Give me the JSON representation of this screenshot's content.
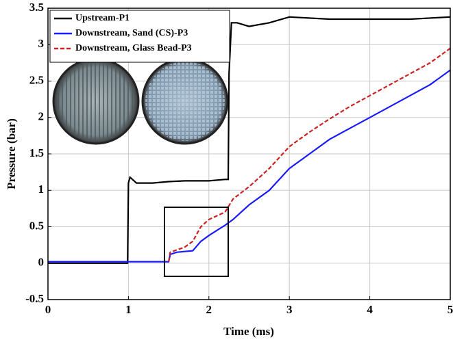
{
  "chart_data": {
    "type": "line",
    "xlabel": "Time (ms)",
    "ylabel": "Pressure (bar)",
    "xlim": [
      0,
      5
    ],
    "xticks": [
      0,
      1,
      2,
      3,
      4,
      5
    ],
    "ylim": [
      -0.5,
      3.5
    ],
    "yticks": [
      -0.5,
      0,
      0.5,
      1,
      1.5,
      2,
      2.5,
      3,
      3.5
    ],
    "grid": true,
    "legend": "upper left",
    "series": [
      {
        "name": "Upstream-P1",
        "color": "#000000",
        "dash": "solid",
        "x": [
          0,
          0.5,
          0.99,
          1.0,
          1.02,
          1.1,
          1.3,
          1.5,
          1.7,
          2.0,
          2.2,
          2.24,
          2.25,
          2.28,
          2.35,
          2.5,
          2.75,
          3.0,
          3.5,
          4.0,
          4.5,
          5.0
        ],
        "values": [
          0.0,
          0.0,
          0.0,
          1.1,
          1.18,
          1.1,
          1.1,
          1.12,
          1.13,
          1.13,
          1.15,
          1.15,
          2.6,
          3.3,
          3.3,
          3.25,
          3.3,
          3.38,
          3.35,
          3.35,
          3.35,
          3.38
        ]
      },
      {
        "name": "Downstream, Sand (CS)-P3",
        "color": "#1a1aff",
        "dash": "solid",
        "x": [
          0,
          0.5,
          1.0,
          1.5,
          1.52,
          1.6,
          1.8,
          1.9,
          2.0,
          2.1,
          2.2,
          2.3,
          2.5,
          2.75,
          3.0,
          3.25,
          3.5,
          3.75,
          4.0,
          4.25,
          4.5,
          4.75,
          5.0
        ],
        "values": [
          0.02,
          0.02,
          0.02,
          0.02,
          0.12,
          0.15,
          0.17,
          0.3,
          0.38,
          0.45,
          0.52,
          0.6,
          0.8,
          1.0,
          1.3,
          1.5,
          1.7,
          1.85,
          2.0,
          2.15,
          2.3,
          2.45,
          2.65
        ]
      },
      {
        "name": "Downstream, Glass Bead-P3",
        "color": "#cc2222",
        "dash": "dashed",
        "x": [
          1.5,
          1.52,
          1.7,
          1.8,
          1.9,
          2.0,
          2.1,
          2.2,
          2.3,
          2.5,
          2.75,
          3.0,
          3.25,
          3.5,
          3.75,
          4.0,
          4.25,
          4.5,
          4.75,
          5.0
        ],
        "values": [
          0.02,
          0.15,
          0.22,
          0.3,
          0.5,
          0.6,
          0.65,
          0.7,
          0.88,
          1.05,
          1.3,
          1.6,
          1.8,
          1.98,
          2.15,
          2.3,
          2.45,
          2.6,
          2.75,
          2.95
        ]
      }
    ]
  }
}
